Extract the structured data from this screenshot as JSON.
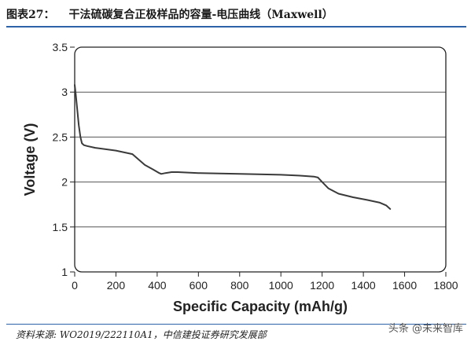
{
  "figure": {
    "label": "图表27：",
    "title": "干法硫碳复合正极样品的容量-电压曲线（Maxwell）"
  },
  "footer": {
    "source": "资料来源: WO2019/222110A1，中信建投证券研究发展部",
    "watermark": "头条 @未来智库"
  },
  "colors": {
    "rule": "#2e62a8",
    "line": "#3a3a3a",
    "grid": "#555555"
  },
  "chart_data": {
    "type": "line",
    "title": "",
    "xlabel": "Specific Capacity (mAh/g)",
    "ylabel": "Voltage (V)",
    "xlim": [
      0,
      1800
    ],
    "ylim": [
      1,
      3.5
    ],
    "xticks": [
      0,
      200,
      400,
      600,
      800,
      1000,
      1200,
      1400,
      1600,
      1800
    ],
    "yticks": [
      1,
      1.5,
      2,
      2.5,
      3,
      3.5
    ],
    "grid": "horizontal",
    "legend": "none",
    "series": [
      {
        "x": [
          0,
          5,
          12,
          20,
          28,
          35,
          45,
          60,
          100,
          200,
          280,
          310,
          340,
          380,
          410,
          420,
          440,
          470,
          500,
          600,
          800,
          1000,
          1100,
          1160,
          1180,
          1200,
          1230,
          1280,
          1350,
          1420,
          1480,
          1510,
          1530
        ],
        "y": [
          3.08,
          2.98,
          2.82,
          2.63,
          2.5,
          2.43,
          2.41,
          2.4,
          2.38,
          2.35,
          2.31,
          2.25,
          2.19,
          2.14,
          2.1,
          2.09,
          2.1,
          2.11,
          2.11,
          2.1,
          2.09,
          2.08,
          2.07,
          2.06,
          2.05,
          2.0,
          1.93,
          1.87,
          1.83,
          1.8,
          1.77,
          1.74,
          1.7
        ]
      }
    ]
  }
}
